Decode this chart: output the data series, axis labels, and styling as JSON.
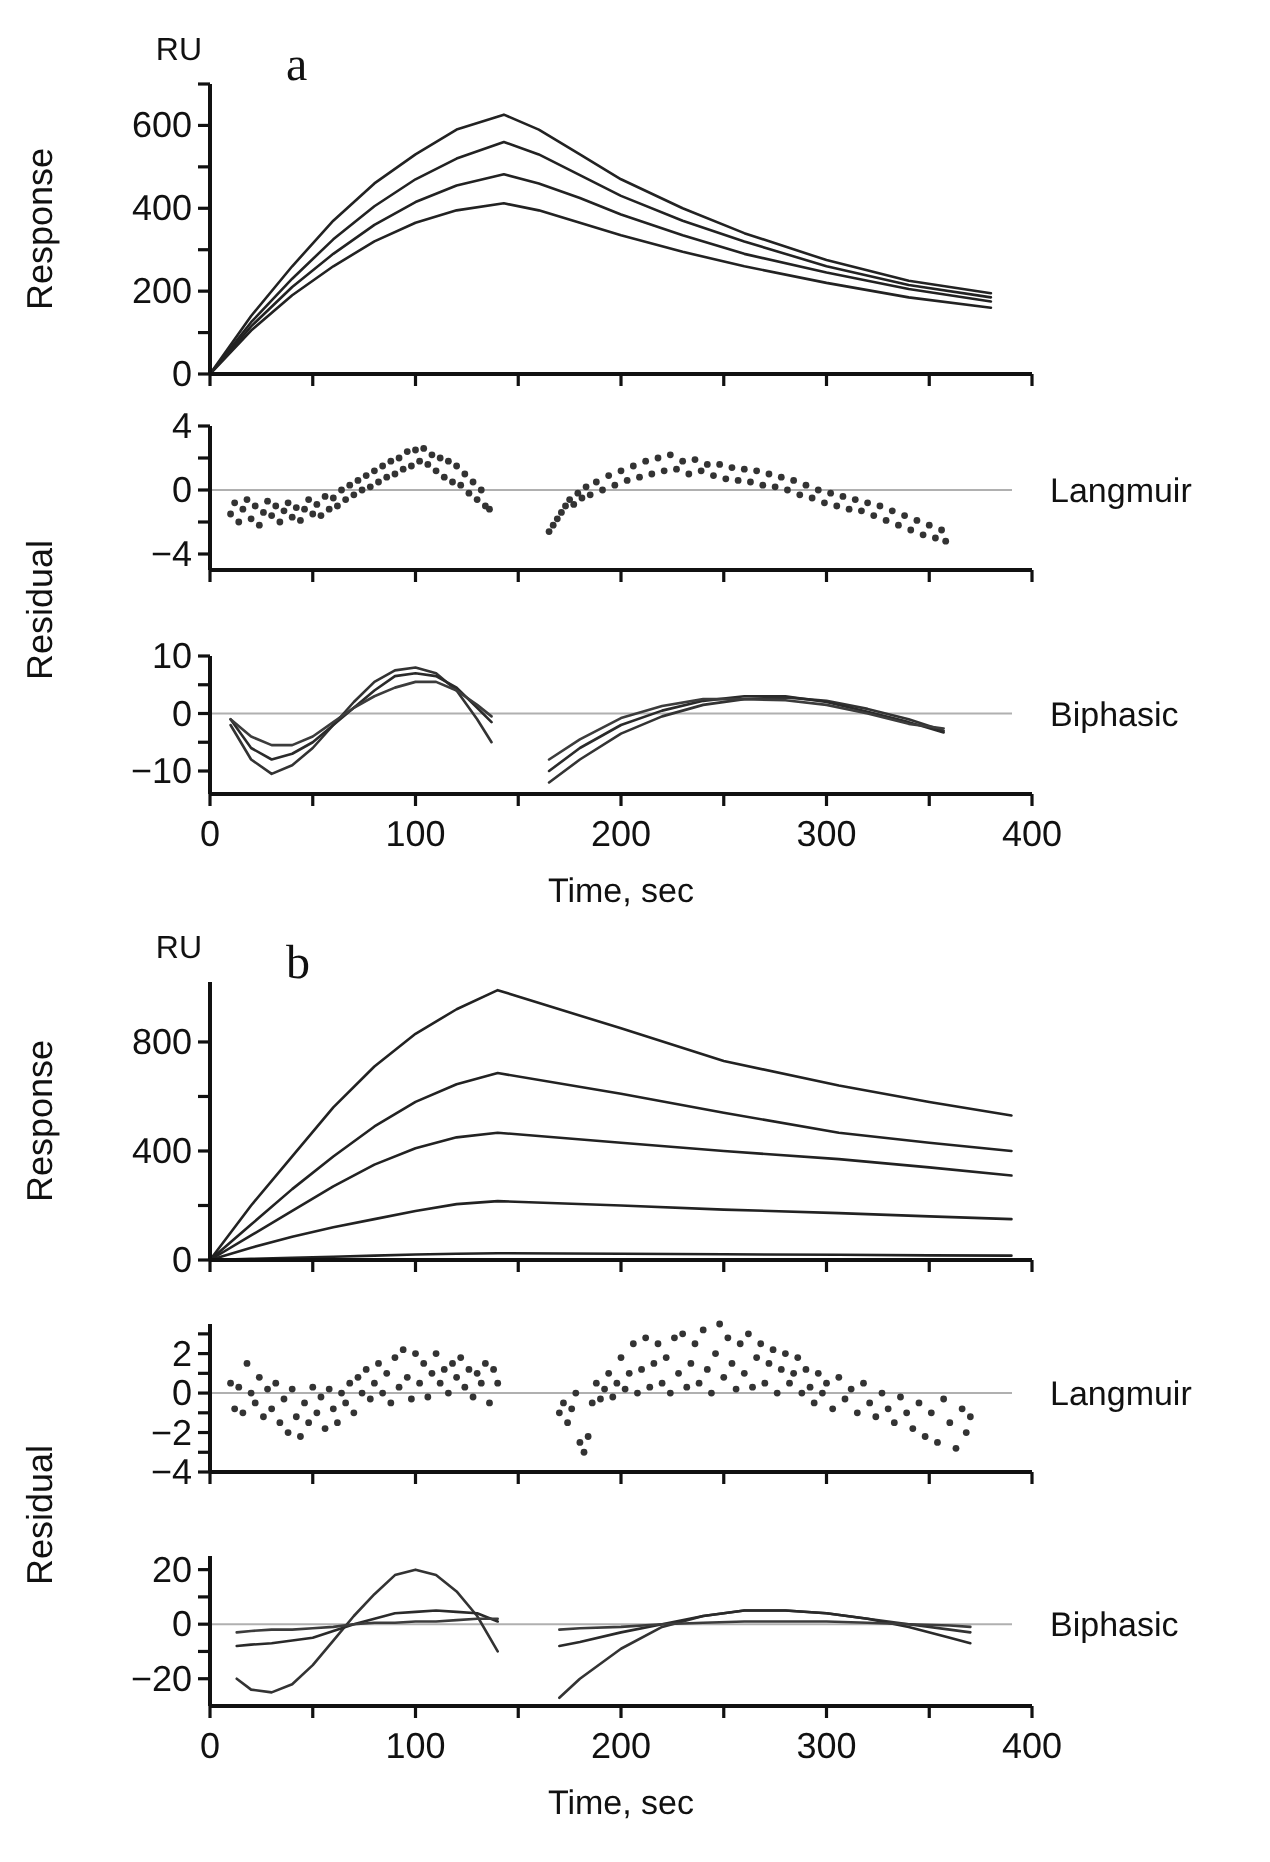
{
  "chart_data": [
    {
      "type": "line",
      "title": "a",
      "ylabel": "Response",
      "annotations": [
        "RU"
      ],
      "xlim": [
        0,
        400
      ],
      "xticks": [
        0,
        {
          "value": 50,
          "label": null
        },
        100,
        {
          "value": 150,
          "label": null
        },
        200,
        {
          "value": 250,
          "label": null
        },
        300,
        {
          "value": 350,
          "label": null
        },
        400
      ],
      "ylim": [
        0,
        700
      ],
      "yticks": [
        0,
        {
          "value": 100,
          "label": null
        },
        200,
        {
          "value": 300,
          "label": null
        },
        400,
        {
          "value": 500,
          "label": null
        },
        600,
        {
          "value": 700,
          "label": null
        }
      ],
      "tick_labels": "y",
      "x": [
        0,
        20,
        40,
        60,
        80,
        100,
        120,
        143,
        160,
        180,
        200,
        230,
        260,
        300,
        340,
        380
      ],
      "series": [
        {
          "color": "#222222",
          "values": [
            0,
            140,
            260,
            370,
            460,
            530,
            590,
            626,
            590,
            530,
            470,
            400,
            340,
            275,
            225,
            195
          ]
        },
        {
          "color": "#222222",
          "values": [
            0,
            125,
            230,
            325,
            405,
            470,
            520,
            560,
            530,
            480,
            430,
            370,
            320,
            260,
            215,
            185
          ]
        },
        {
          "color": "#222222",
          "values": [
            0,
            115,
            210,
            290,
            360,
            415,
            455,
            482,
            460,
            425,
            385,
            335,
            290,
            245,
            205,
            175
          ]
        },
        {
          "color": "#222222",
          "values": [
            0,
            105,
            190,
            260,
            320,
            365,
            395,
            412,
            395,
            365,
            335,
            295,
            260,
            220,
            185,
            160
          ]
        }
      ]
    },
    {
      "type": "scatter",
      "annotations": [
        "Langmuir"
      ],
      "ylabel": "Residual",
      "marker": "circle",
      "xlim": [
        0,
        400
      ],
      "xticks": [
        0,
        {
          "value": 50,
          "label": null
        },
        100,
        {
          "value": 150,
          "label": null
        },
        200,
        {
          "value": 250,
          "label": null
        },
        300,
        {
          "value": 350,
          "label": null
        },
        400
      ],
      "ylim": [
        -5,
        4
      ],
      "yticks": [
        {
          "value": -4,
          "label": "−4"
        },
        {
          "value": -2,
          "label": null
        },
        0,
        {
          "value": 2,
          "label": null
        },
        4
      ],
      "tick_labels": "y",
      "ref_lines": [
        {
          "axis": "y",
          "value": 0,
          "color": "#b0b0b0"
        }
      ],
      "series": [
        {
          "color": "#333333",
          "x": [
            10,
            12,
            14,
            16,
            18,
            20,
            22,
            24,
            26,
            28,
            30,
            32,
            34,
            36,
            38,
            40,
            42,
            44,
            46,
            48,
            50,
            52,
            54,
            56,
            58,
            60,
            62,
            64,
            66,
            68,
            70,
            72,
            74,
            76,
            78,
            80,
            82,
            84,
            86,
            88,
            90,
            92,
            94,
            96,
            98,
            100,
            102,
            104,
            106,
            108,
            110,
            112,
            114,
            116,
            118,
            120,
            122,
            124,
            126,
            128,
            130,
            132,
            134,
            136,
            165,
            167,
            169,
            171,
            173,
            175,
            177,
            179,
            181,
            183,
            185,
            188,
            191,
            194,
            197,
            200,
            203,
            206,
            209,
            212,
            215,
            218,
            221,
            224,
            227,
            230,
            233,
            236,
            239,
            242,
            245,
            248,
            251,
            254,
            257,
            260,
            263,
            266,
            269,
            272,
            275,
            278,
            281,
            284,
            287,
            290,
            293,
            296,
            299,
            302,
            305,
            308,
            311,
            314,
            317,
            320,
            323,
            326,
            329,
            332,
            335,
            338,
            341,
            344,
            347,
            350,
            353,
            356,
            358
          ],
          "values": [
            -1.5,
            -0.8,
            -2,
            -1.2,
            -0.6,
            -1.8,
            -1,
            -2.2,
            -1.4,
            -0.7,
            -1.6,
            -1,
            -2,
            -1.3,
            -0.8,
            -1.7,
            -1.1,
            -1.9,
            -1.2,
            -0.6,
            -1.5,
            -0.9,
            -1.6,
            -0.4,
            -1.2,
            -0.5,
            -1,
            0,
            -0.6,
            0.3,
            -0.3,
            0.6,
            0,
            0.9,
            0.2,
            1.2,
            0.5,
            1.5,
            0.8,
            1.8,
            1,
            2,
            1.3,
            2.4,
            1.5,
            2.5,
            1.8,
            2.6,
            1.6,
            2.2,
            1.2,
            2,
            0.8,
            1.8,
            0.5,
            1.5,
            0.3,
            1,
            -0.2,
            0.5,
            -0.6,
            0,
            -1,
            -1.2,
            -2.6,
            -2.2,
            -1.8,
            -1.4,
            -1,
            -0.6,
            -0.9,
            -0.2,
            -0.5,
            0.2,
            -0.3,
            0.5,
            0,
            0.9,
            0.3,
            1.2,
            0.6,
            1.5,
            0.8,
            1.8,
            1,
            2,
            1.2,
            2.2,
            1.3,
            1.8,
            1,
            1.9,
            1.2,
            1.6,
            0.9,
            1.6,
            0.7,
            1.4,
            0.6,
            1.3,
            0.5,
            1.2,
            0.3,
            1,
            0.2,
            0.8,
            0,
            0.6,
            -0.3,
            0.3,
            -0.5,
            0,
            -0.8,
            -0.2,
            -1,
            -0.4,
            -1.2,
            -0.6,
            -1.3,
            -0.8,
            -1.6,
            -1,
            -1.9,
            -1.3,
            -2.2,
            -1.6,
            -2.5,
            -1.9,
            -2.8,
            -2.2,
            -3,
            -2.5,
            -3.2
          ]
        }
      ]
    },
    {
      "type": "line",
      "annotations": [
        "Biphasic"
      ],
      "xlabel": "Time, sec",
      "xlim": [
        0,
        400
      ],
      "xticks": [
        0,
        {
          "value": 50,
          "label": null
        },
        100,
        {
          "value": 150,
          "label": null
        },
        200,
        {
          "value": 250,
          "label": null
        },
        300,
        {
          "value": 350,
          "label": null
        },
        400
      ],
      "ylim": [
        -14,
        10
      ],
      "yticks": [
        {
          "value": -10,
          "label": "−10"
        },
        {
          "value": -5,
          "label": null
        },
        0,
        {
          "value": 5,
          "label": null
        },
        10
      ],
      "ref_lines": [
        {
          "axis": "y",
          "value": 0,
          "color": "#b0b0b0"
        }
      ],
      "x": [
        10,
        20,
        30,
        40,
        50,
        60,
        70,
        80,
        90,
        100,
        110,
        120,
        130,
        137,
        150,
        165,
        180,
        200,
        220,
        240,
        260,
        280,
        300,
        320,
        340,
        357
      ],
      "series": [
        {
          "color": "#333333",
          "values": [
            -2,
            -8,
            -10.5,
            -9,
            -6,
            -2,
            2,
            5.5,
            7.5,
            8,
            7,
            4,
            -1,
            -5,
            null,
            -12,
            -8,
            -3.5,
            -0.5,
            1.5,
            2.5,
            2.8,
            2.2,
            0.8,
            -1,
            -3
          ]
        },
        {
          "color": "#2a2a2a",
          "values": [
            -1,
            -6,
            -8,
            -7,
            -5,
            -2,
            1,
            4,
            6.5,
            7,
            6.5,
            4.5,
            1,
            -1.5,
            null,
            -10,
            -6,
            -2,
            0.5,
            2.2,
            3,
            3,
            2,
            0.3,
            -1.5,
            -3.3
          ]
        },
        {
          "color": "#3c3c3c",
          "values": [
            -1,
            -4,
            -5.5,
            -5.5,
            -4,
            -1.5,
            1,
            3,
            4.5,
            5.5,
            5.5,
            4,
            1.5,
            -0.5,
            null,
            -8,
            -4.5,
            -0.8,
            1.3,
            2.5,
            2.5,
            2.3,
            1.5,
            0,
            -1.8,
            -2.6
          ]
        }
      ]
    },
    {
      "type": "line",
      "title": "b",
      "ylabel": "Response",
      "annotations": [
        "RU"
      ],
      "xlim": [
        0,
        400
      ],
      "xticks": [
        0,
        {
          "value": 50,
          "label": null
        },
        100,
        {
          "value": 150,
          "label": null
        },
        200,
        {
          "value": 250,
          "label": null
        },
        300,
        {
          "value": 350,
          "label": null
        },
        400
      ],
      "ylim": [
        0,
        1020
      ],
      "yticks": [
        0,
        {
          "value": 200,
          "label": null
        },
        400,
        {
          "value": 600,
          "label": null
        },
        800
      ],
      "tick_labels": "y",
      "x": [
        0,
        20,
        40,
        60,
        80,
        100,
        120,
        140,
        200,
        250,
        306,
        350,
        390
      ],
      "series": [
        {
          "color": "#222222",
          "values": [
            0,
            200,
            380,
            560,
            710,
            830,
            920,
            990,
            850,
            730,
            640,
            580,
            530
          ]
        },
        {
          "color": "#222222",
          "values": [
            0,
            130,
            260,
            380,
            490,
            580,
            645,
            686,
            610,
            540,
            467,
            430,
            400
          ]
        },
        {
          "color": "#222222",
          "values": [
            0,
            90,
            180,
            270,
            350,
            410,
            450,
            467,
            430,
            400,
            370,
            340,
            310
          ]
        },
        {
          "color": "#222222",
          "values": [
            0,
            45,
            85,
            120,
            150,
            180,
            205,
            216,
            200,
            185,
            172,
            160,
            150
          ]
        },
        {
          "color": "#222222",
          "values": [
            0,
            4,
            8,
            12,
            16,
            20,
            23,
            25,
            23,
            21,
            19,
            17,
            16
          ]
        }
      ]
    },
    {
      "type": "scatter",
      "annotations": [
        "Langmuir"
      ],
      "ylabel": "Residual",
      "marker": "circle",
      "xlim": [
        0,
        400
      ],
      "xticks": [
        0,
        {
          "value": 50,
          "label": null
        },
        100,
        {
          "value": 150,
          "label": null
        },
        200,
        {
          "value": 250,
          "label": null
        },
        300,
        {
          "value": 350,
          "label": null
        },
        400
      ],
      "ylim": [
        -4,
        3.5
      ],
      "yticks": [
        {
          "value": -4,
          "label": "−4"
        },
        {
          "value": -3,
          "label": null
        },
        {
          "value": -2,
          "label": "−2"
        },
        {
          "value": -1,
          "label": null
        },
        0,
        {
          "value": 1,
          "label": null
        },
        2,
        {
          "value": 3,
          "label": null
        }
      ],
      "tick_labels": "y",
      "ref_lines": [
        {
          "axis": "y",
          "value": 0,
          "color": "#b0b0b0"
        }
      ],
      "series": [
        {
          "color": "#333333",
          "x": [
            10,
            12,
            14,
            16,
            18,
            20,
            22,
            24,
            26,
            28,
            30,
            32,
            34,
            36,
            38,
            40,
            42,
            44,
            46,
            48,
            50,
            52,
            54,
            56,
            58,
            60,
            62,
            64,
            66,
            68,
            70,
            72,
            74,
            76,
            78,
            80,
            82,
            84,
            86,
            88,
            90,
            92,
            94,
            96,
            98,
            100,
            102,
            104,
            106,
            108,
            110,
            112,
            114,
            116,
            118,
            120,
            122,
            124,
            126,
            128,
            130,
            132,
            134,
            136,
            138,
            140,
            170,
            172,
            174,
            176,
            178,
            180,
            182,
            184,
            186,
            188,
            190,
            192,
            194,
            196,
            198,
            200,
            202,
            204,
            206,
            208,
            210,
            212,
            214,
            216,
            218,
            220,
            222,
            224,
            226,
            228,
            230,
            232,
            234,
            236,
            238,
            240,
            242,
            244,
            246,
            248,
            250,
            252,
            254,
            256,
            258,
            260,
            262,
            264,
            266,
            268,
            270,
            272,
            274,
            276,
            278,
            280,
            282,
            284,
            286,
            288,
            290,
            292,
            294,
            296,
            298,
            300,
            303,
            306,
            309,
            312,
            315,
            318,
            321,
            324,
            327,
            330,
            333,
            336,
            339,
            342,
            345,
            348,
            351,
            354,
            357,
            360,
            363,
            366,
            368,
            370
          ],
          "values": [
            0.5,
            -0.8,
            0.3,
            -1,
            1.5,
            0,
            -0.5,
            0.8,
            -1.2,
            0.2,
            -0.8,
            0.5,
            -1.5,
            -0.3,
            -2,
            0.2,
            -1.2,
            -2.2,
            -0.5,
            -1.5,
            0.3,
            -1,
            -0.2,
            -1.8,
            0.2,
            -0.8,
            -1.5,
            0,
            -0.5,
            0.5,
            -1,
            0.8,
            0,
            1.2,
            -0.3,
            0.5,
            1.5,
            0,
            1,
            -0.5,
            1.8,
            0.3,
            2.2,
            0.8,
            -0.3,
            2,
            0.5,
            1.5,
            -0.2,
            1,
            2,
            0.5,
            1.2,
            0,
            1.5,
            0.8,
            1.8,
            0.3,
            1.2,
            -0.2,
            1,
            0.5,
            1.5,
            -0.5,
            1.2,
            0.5,
            -1,
            -0.5,
            -1.5,
            -0.8,
            0,
            -2.5,
            -3,
            -2.2,
            -0.5,
            0.5,
            -0.3,
            0.2,
            1,
            -0.2,
            0.5,
            1.8,
            0.2,
            1,
            2.5,
            0,
            1.2,
            2.8,
            0.3,
            1.5,
            2.5,
            0.5,
            1.8,
            0,
            2.8,
            1,
            3,
            0.3,
            1.5,
            2.5,
            0.5,
            3.2,
            1.2,
            0,
            2,
            3.5,
            0.8,
            2.8,
            1.5,
            0.2,
            2.5,
            1,
            3,
            0.3,
            1.8,
            2.5,
            0.5,
            1.5,
            2.2,
            0,
            1.2,
            2,
            0.5,
            1,
            1.8,
            0,
            1.2,
            0.3,
            -0.5,
            1,
            0,
            0.5,
            -0.8,
            0.8,
            -0.3,
            0.2,
            -1,
            0.5,
            -0.5,
            -1.2,
            0,
            -0.8,
            -1.5,
            -0.2,
            -1,
            -1.8,
            -0.5,
            -2.2,
            -1,
            -2.5,
            -0.3,
            -1.5,
            -2.8,
            -0.8,
            -2,
            -1.2
          ]
        }
      ]
    },
    {
      "type": "line",
      "annotations": [
        "Biphasic"
      ],
      "xlabel": "Time, sec",
      "xlim": [
        0,
        400
      ],
      "xticks": [
        0,
        {
          "value": 50,
          "label": null
        },
        100,
        {
          "value": 150,
          "label": null
        },
        200,
        {
          "value": 250,
          "label": null
        },
        300,
        {
          "value": 350,
          "label": null
        },
        400
      ],
      "ylim": [
        -30,
        25
      ],
      "yticks": [
        {
          "value": -20,
          "label": "−20"
        },
        {
          "value": -10,
          "label": null
        },
        0,
        {
          "value": 10,
          "label": null
        },
        20
      ],
      "ref_lines": [
        {
          "axis": "y",
          "value": 0,
          "color": "#b0b0b0"
        }
      ],
      "x": [
        13,
        20,
        30,
        40,
        50,
        60,
        70,
        80,
        90,
        100,
        110,
        120,
        130,
        140,
        155,
        170,
        180,
        200,
        220,
        240,
        260,
        280,
        300,
        320,
        340,
        360,
        370
      ],
      "series": [
        {
          "color": "#333333",
          "values": [
            -20,
            -24,
            -25,
            -22,
            -15,
            -6,
            3,
            11,
            18,
            20,
            18,
            12,
            3,
            -10,
            null,
            -27,
            -20,
            -9,
            -1,
            3,
            5,
            5,
            4,
            2,
            0,
            -2,
            -3
          ]
        },
        {
          "color": "#2a2a2a",
          "values": [
            -8,
            -7.5,
            -7,
            -6,
            -5,
            -2.5,
            0,
            2,
            4,
            4.5,
            5,
            4.5,
            4,
            1,
            null,
            -8,
            -6.5,
            -3,
            0,
            3,
            5,
            5,
            4,
            2,
            -1,
            -5,
            -7
          ]
        },
        {
          "color": "#3c3c3c",
          "values": [
            -3,
            -2.5,
            -2,
            -2,
            -1.5,
            -1,
            0,
            0.5,
            0.5,
            1,
            1,
            1.5,
            2,
            2,
            null,
            -2,
            -1.5,
            -1,
            0,
            0.5,
            1,
            1,
            1,
            0.5,
            0,
            -0.5,
            -1
          ]
        }
      ]
    }
  ]
}
